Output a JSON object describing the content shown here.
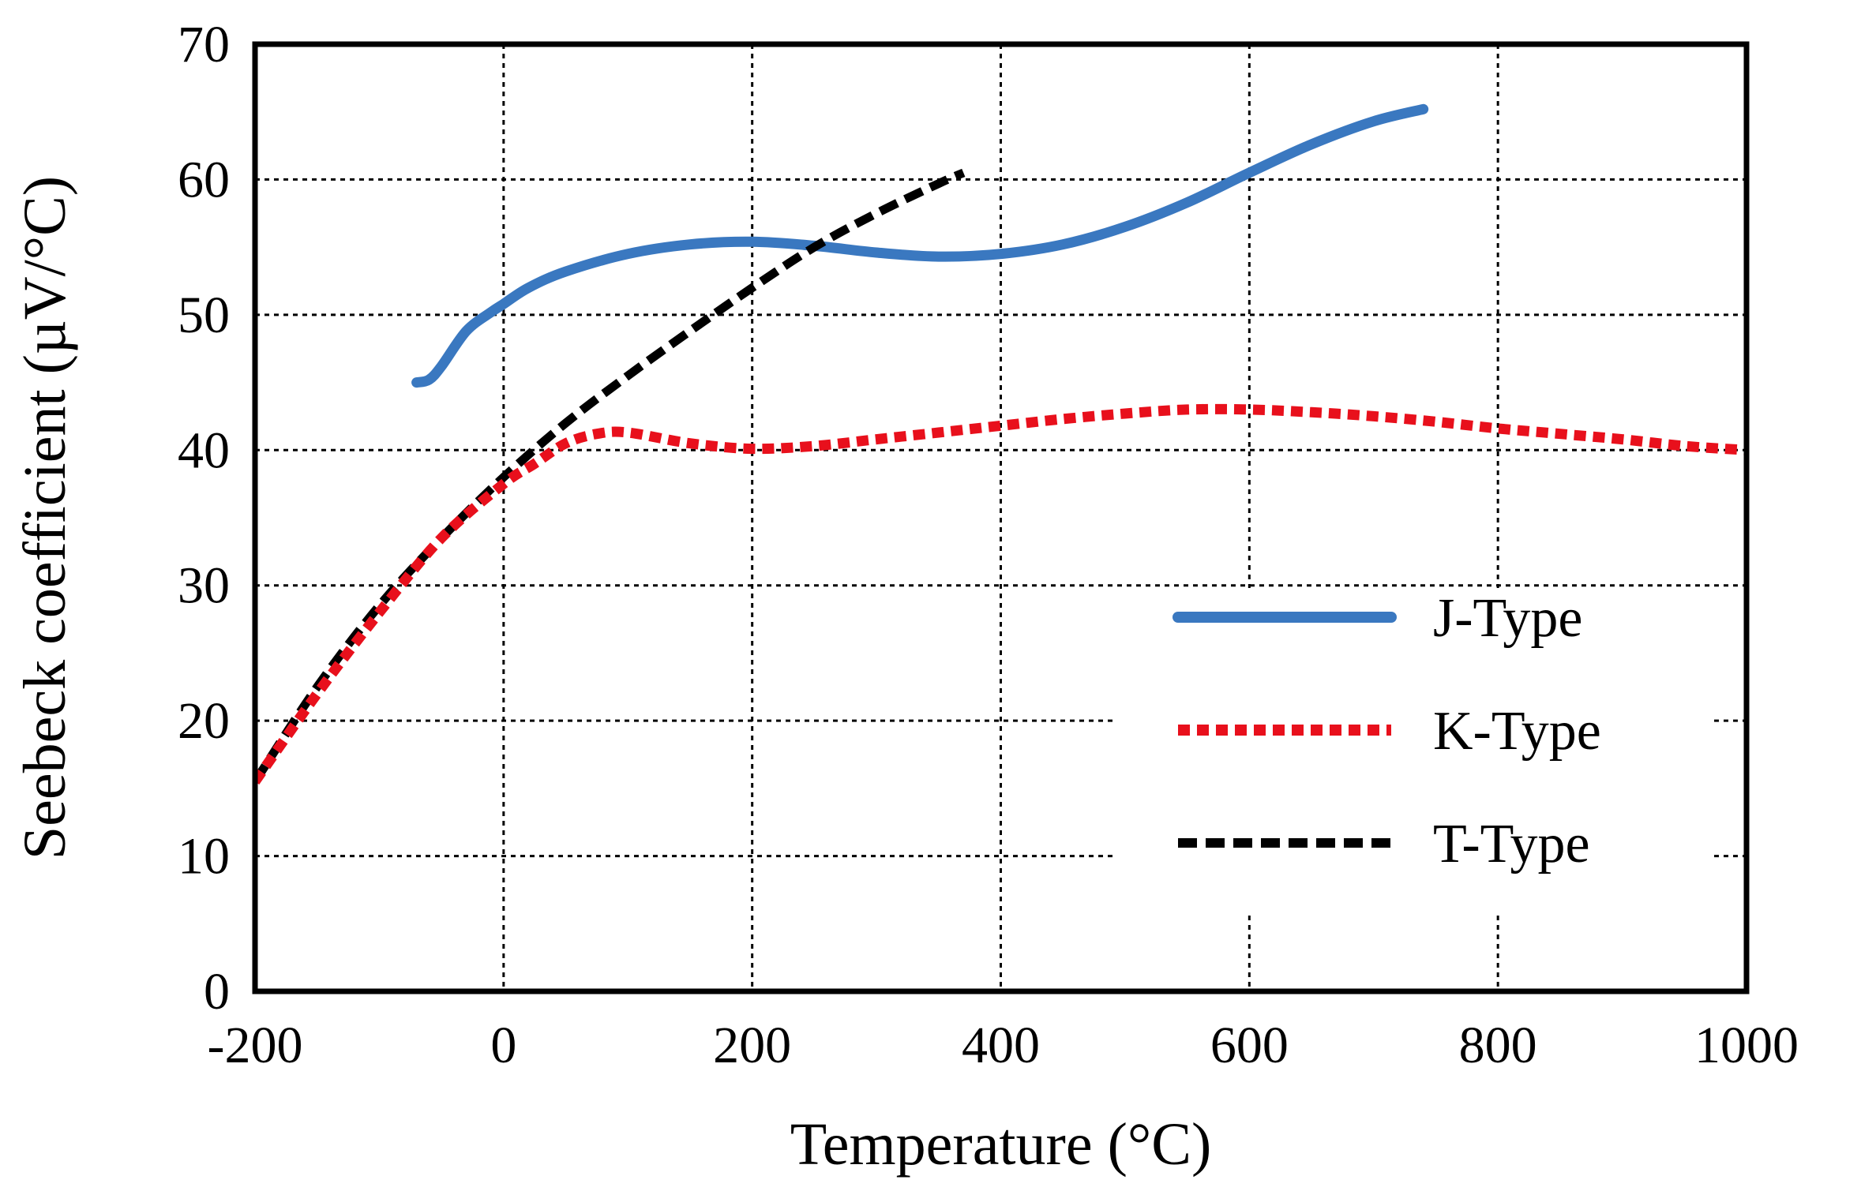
{
  "chart_data": {
    "type": "line",
    "title": "",
    "xlabel": "Temperature (°C)",
    "ylabel": "Seebeck coefficient (µV/°C)",
    "xlim": [
      -200,
      1000
    ],
    "ylim": [
      0,
      70
    ],
    "xticks": [
      -200,
      0,
      200,
      400,
      600,
      800,
      1000
    ],
    "yticks": [
      0,
      10,
      20,
      30,
      40,
      50,
      60,
      70
    ],
    "grid": true,
    "legend_position": "bottom-right",
    "series": [
      {
        "name": "J-Type",
        "color": "#3a78c0",
        "style": "solid",
        "x": [
          -70,
          -60,
          -50,
          -30,
          -10,
          0,
          20,
          50,
          100,
          150,
          200,
          250,
          300,
          350,
          400,
          450,
          500,
          550,
          600,
          650,
          700,
          740
        ],
        "y": [
          45,
          45.2,
          46.2,
          48.8,
          50.2,
          50.8,
          52,
          53.2,
          54.5,
          55.2,
          55.4,
          55.1,
          54.6,
          54.3,
          54.5,
          55.2,
          56.5,
          58.3,
          60.5,
          62.6,
          64.3,
          65.2
        ]
      },
      {
        "name": "K-Type",
        "color": "#e8101c",
        "style": "dotted",
        "x": [
          -200,
          -150,
          -100,
          -50,
          0,
          25,
          50,
          75,
          100,
          150,
          200,
          250,
          300,
          350,
          400,
          450,
          500,
          550,
          600,
          650,
          700,
          750,
          800,
          850,
          900,
          950,
          1000
        ],
        "y": [
          15.5,
          22,
          28,
          33.5,
          37.5,
          39,
          40.5,
          41.2,
          41.3,
          40.5,
          40.1,
          40.3,
          40.8,
          41.3,
          41.8,
          42.3,
          42.7,
          43,
          43,
          42.8,
          42.5,
          42.1,
          41.6,
          41.2,
          40.8,
          40.3,
          40
        ]
      },
      {
        "name": "T-Type",
        "color": "#000000",
        "style": "dashed",
        "x": [
          -200,
          -150,
          -100,
          -50,
          0,
          50,
          100,
          150,
          200,
          250,
          300,
          350,
          370
        ],
        "y": [
          15.5,
          22.5,
          28.5,
          33.5,
          38,
          42,
          45.5,
          48.8,
          52,
          55,
          57.5,
          59.7,
          60.5
        ]
      }
    ]
  }
}
